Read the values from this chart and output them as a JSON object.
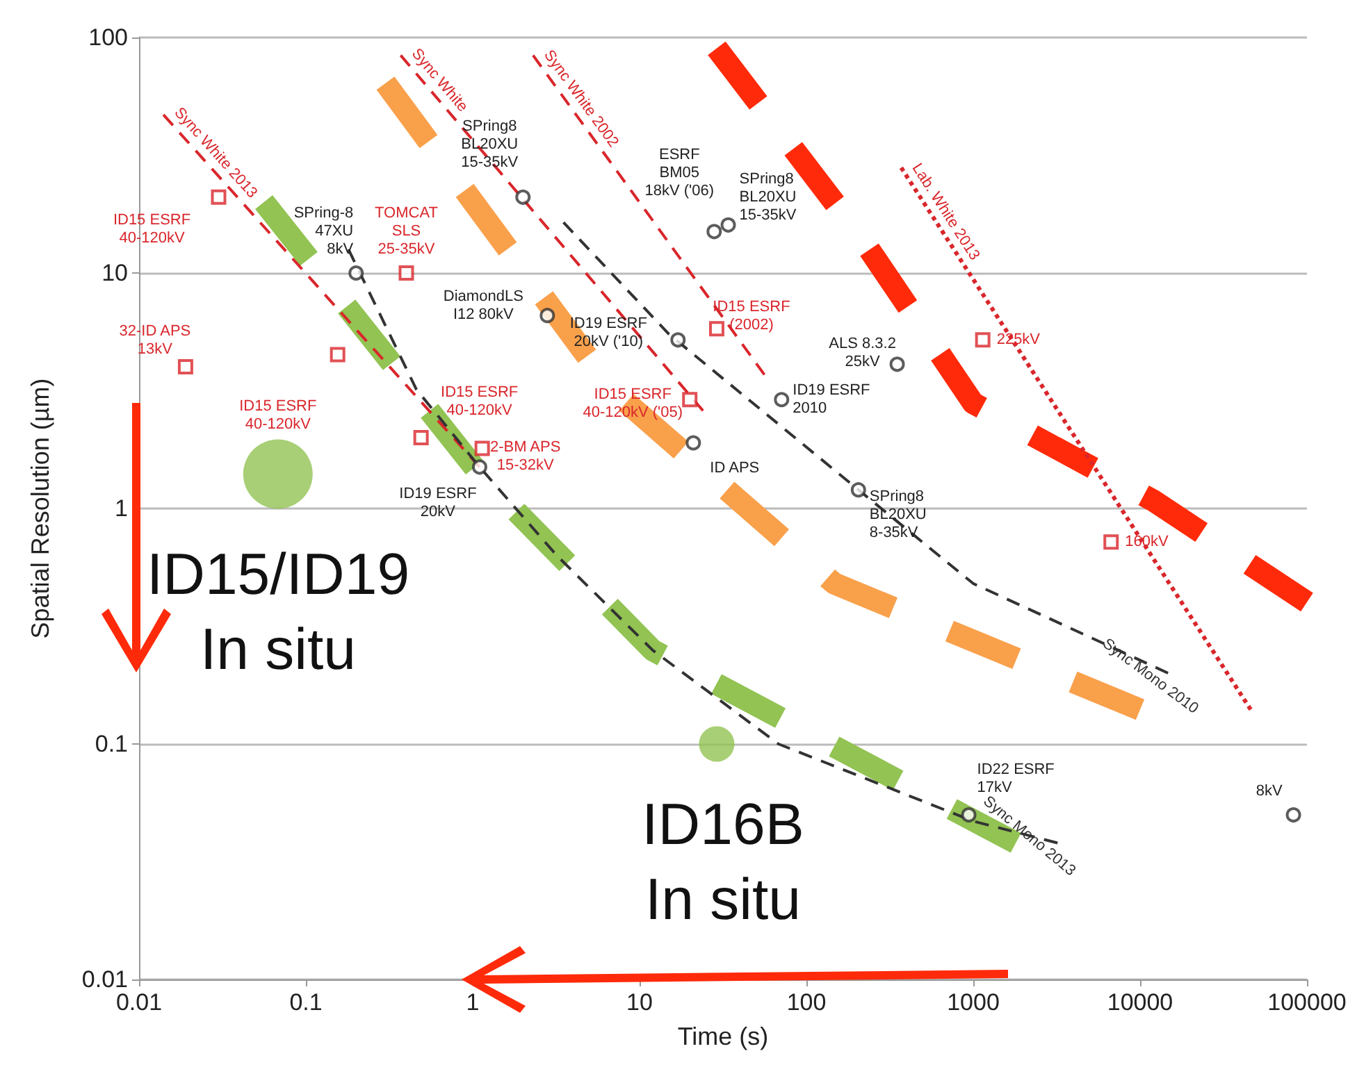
{
  "chart_data": {
    "type": "line",
    "xlabel": "Time (s)",
    "ylabel": "Spatial Resolution (µm)",
    "log": "xy",
    "xlim": [
      0.01,
      100000
    ],
    "ylim": [
      0.01,
      100
    ],
    "xticks": [
      0.01,
      0.1,
      1,
      10,
      100,
      1000,
      10000,
      100000
    ],
    "yticks": [
      0.01,
      0.1,
      1,
      10,
      100
    ],
    "grid": "y",
    "series": [
      {
        "name": "Sync White 2013",
        "color": "#d9262b",
        "line_style": "dashed",
        "marker": "none",
        "x": [
          0.014,
          1.1
        ],
        "values": [
          47,
          1.5
        ]
      },
      {
        "name": "Sync White",
        "color": "#d9262b",
        "line_style": "dashed",
        "marker": "none",
        "x": [
          0.37,
          24
        ],
        "values": [
          84,
          2.6
        ]
      },
      {
        "name": "Sync White 2002",
        "color": "#d9262b",
        "line_style": "dashed",
        "marker": "none",
        "x": [
          2.3,
          56
        ],
        "values": [
          84,
          3.7
        ]
      },
      {
        "name": "Lab. White 2013",
        "color": "#d9262b",
        "line_style": "dotted",
        "marker": "none",
        "x": [
          370,
          46000
        ],
        "values": [
          28,
          0.14
        ]
      },
      {
        "name": "Sync Mono 2010",
        "color": "#333333",
        "line_style": "dashed",
        "marker": "none",
        "x": [
          3.5,
          15,
          205,
          1000,
          14700
        ],
        "values": [
          16.4,
          5.5,
          1.2,
          0.48,
          0.2
        ]
      },
      {
        "name": "Sync Mono 2013",
        "color": "#333333",
        "line_style": "dashed",
        "marker": "none",
        "x": [
          0.18,
          0.46,
          1.1,
          3.2,
          12,
          68,
          1000,
          3200
        ],
        "values": [
          12.6,
          3.2,
          1.5,
          0.63,
          0.25,
          0.1,
          0.047,
          0.038
        ]
      },
      {
        "color": "#92c353",
        "line_style": "dashed",
        "marker": "none",
        "x": [
          0.056,
          1.1,
          12,
          1800
        ],
        "values": [
          20,
          1.4,
          0.25,
          0.038
        ]
      },
      {
        "color": "#f9a04b",
        "line_style": "dashed",
        "marker": "none",
        "x": [
          0.3,
          6.8,
          147,
          10000
        ],
        "values": [
          64,
          3.2,
          0.48,
          0.14
        ]
      },
      {
        "color": "#ff2a0a",
        "line_style": "dashed",
        "marker": "none",
        "x": [
          29,
          215,
          1000,
          12000,
          100000
        ],
        "values": [
          90,
          14,
          2.8,
          1.08,
          0.4
        ]
      },
      {
        "type": "scatter",
        "color": "#d9262b",
        "marker": "square",
        "x": [
          0.03,
          0.019,
          0.155,
          0.4,
          0.49,
          1.14,
          20,
          29,
          1140,
          6700
        ],
        "values": [
          21,
          4,
          4.5,
          10,
          2,
          1.8,
          2.9,
          5.8,
          5.2,
          0.72
        ]
      },
      {
        "type": "scatter",
        "color": "#333333",
        "marker": "circle",
        "x": [
          2,
          28,
          34,
          0.2,
          2.8,
          17,
          71,
          21,
          350,
          205,
          1.1,
          940,
          83000
        ],
        "values": [
          21,
          15,
          16,
          10,
          6.6,
          5.2,
          2.9,
          1.9,
          4.1,
          1.2,
          1.5,
          0.05,
          0.05
        ]
      },
      {
        "type": "bubble",
        "color": "#92c353",
        "marker": "circle",
        "x": [
          0.068,
          29
        ],
        "values": [
          1.4,
          0.1
        ],
        "sizes": [
          1,
          0.26
        ]
      }
    ],
    "annotations": [
      {
        "text": "ID15 ESRF\n40-120kV",
        "x": 0.03,
        "y": 21
      },
      {
        "text": "32-ID APS\n13kV",
        "x": 0.019,
        "y": 4
      },
      {
        "text": "TOMCAT\nSLS\n25-35kV",
        "x": 0.4,
        "y": 10
      },
      {
        "text": "ID15 ESRF\n40-120kV",
        "x": 0.49,
        "y": 2
      },
      {
        "text": "2-BM APS\n15-32kV",
        "x": 1.14,
        "y": 1.8
      },
      {
        "text": "ID15 ESRF\n40-120kV ('05)",
        "x": 20,
        "y": 2.9
      },
      {
        "text": "ID15 ESRF\n(2002)",
        "x": 29,
        "y": 5.8
      },
      {
        "text": "225kV",
        "x": 1140,
        "y": 5.2
      },
      {
        "text": "160kV",
        "x": 6700,
        "y": 0.72
      },
      {
        "text": "SPring8\nBL20XU\n15-35kV",
        "x": 2,
        "y": 21
      },
      {
        "text": "ESRF\nBM05\n18kV ('06)",
        "x": 28,
        "y": 15
      },
      {
        "text": "SPring8\nBL20XU\n15-35kV",
        "x": 34,
        "y": 16
      },
      {
        "text": "SPring-8\n47XU\n8kV",
        "x": 0.2,
        "y": 10
      },
      {
        "text": "DiamondLS\nI12 80kV",
        "x": 2.8,
        "y": 6.6
      },
      {
        "text": "ID19 ESRF\n20kV ('10)",
        "x": 17,
        "y": 5.2
      },
      {
        "text": "ID19 ESRF\n2010",
        "x": 71,
        "y": 2.9
      },
      {
        "text": "ID APS",
        "x": 21,
        "y": 1.9
      },
      {
        "text": "ALS 8.3.2\n25kV",
        "x": 350,
        "y": 4.1
      },
      {
        "text": "SPring8\nBL20XU\n8-35kV",
        "x": 205,
        "y": 1.2
      },
      {
        "text": "ID19 ESRF\n20kV",
        "x": 1.1,
        "y": 1.5
      },
      {
        "text": "ID22 ESRF\n17kV",
        "x": 940,
        "y": 0.05
      },
      {
        "text": "8kV",
        "x": 83000,
        "y": 0.05
      },
      {
        "text": "ID15 ESRF\n40-120kV",
        "x": 0.068,
        "y": 1.4
      },
      "ID15/ID19\nIn situ",
      "ID16B\nIn situ"
    ]
  }
}
